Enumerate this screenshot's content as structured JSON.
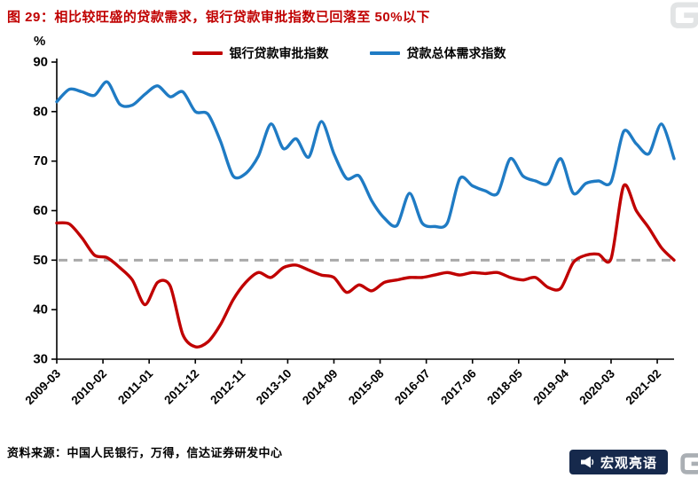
{
  "header": {
    "title": "图 29：相比较旺盛的贷款需求，银行贷款审批指数已回落至 50%以下",
    "title_color": "#C00000"
  },
  "axis": {
    "y_unit_label": "%"
  },
  "legend": {
    "items": [
      {
        "label": "银行贷款审批指数",
        "color": "#C00000"
      },
      {
        "label": "贷款总体需求指数",
        "color": "#1F7BC4"
      }
    ]
  },
  "footer": {
    "source": "资料来源：中国人民银行，万得，信达证券研发中心"
  },
  "watermarks": {
    "brand_badge": "宏观亮语",
    "corner_logo": "格隆汇"
  },
  "chart_data": {
    "type": "line",
    "title": "相比较旺盛的贷款需求，银行贷款审批指数已回落至 50%以下",
    "y_unit": "%",
    "ylim": [
      30,
      90
    ],
    "yticks": [
      90,
      80,
      70,
      60,
      50,
      40,
      30
    ],
    "grid": false,
    "legend_position": "top-center",
    "reference_line": {
      "value": 50,
      "style": "dashed",
      "color": "#A9A9A9"
    },
    "x": [
      "2009Q1",
      "2009Q2",
      "2009Q3",
      "2009Q4",
      "2010Q1",
      "2010Q2",
      "2010Q3",
      "2010Q4",
      "2011Q1",
      "2011Q2",
      "2011Q3",
      "2011Q4",
      "2012Q1",
      "2012Q2",
      "2012Q3",
      "2012Q4",
      "2013Q1",
      "2013Q2",
      "2013Q3",
      "2013Q4",
      "2014Q1",
      "2014Q2",
      "2014Q3",
      "2014Q4",
      "2015Q1",
      "2015Q2",
      "2015Q3",
      "2015Q4",
      "2016Q1",
      "2016Q2",
      "2016Q3",
      "2016Q4",
      "2017Q1",
      "2017Q2",
      "2017Q3",
      "2017Q4",
      "2018Q1",
      "2018Q2",
      "2018Q3",
      "2018Q4",
      "2019Q1",
      "2019Q2",
      "2019Q3",
      "2019Q4",
      "2020Q1",
      "2020Q2",
      "2020Q3",
      "2020Q4",
      "2021Q1",
      "2021Q2"
    ],
    "x_tick_labels": [
      "2009-03",
      "2010-02",
      "2011-01",
      "2011-12",
      "2012-11",
      "2013-10",
      "2014-09",
      "2015-08",
      "2016-07",
      "2017-06",
      "2018-05",
      "2019-04",
      "2020-03",
      "2021-02"
    ],
    "x_tick_months": [
      0,
      11,
      22,
      33,
      44,
      55,
      66,
      77,
      88,
      99,
      110,
      121,
      132,
      143
    ],
    "series": [
      {
        "name": "银行贷款审批指数",
        "color": "#C00000",
        "values": [
          57.5,
          57.3,
          54.5,
          51.0,
          50.5,
          48.5,
          46.0,
          41.0,
          45.5,
          44.8,
          35.0,
          32.5,
          33.5,
          37.0,
          42.0,
          45.5,
          47.5,
          46.5,
          48.5,
          49.0,
          48.0,
          47.0,
          46.5,
          43.5,
          45.0,
          43.8,
          45.5,
          46.0,
          46.5,
          46.5,
          47.0,
          47.5,
          47.0,
          47.5,
          47.3,
          47.5,
          46.5,
          46.0,
          46.5,
          44.5,
          44.3,
          49.5,
          51.0,
          51.2,
          50.3,
          65.0,
          60.0,
          56.5,
          52.5,
          50.0
        ]
      },
      {
        "name": "贷款总体需求指数",
        "color": "#1F7BC4",
        "values": [
          82.0,
          84.5,
          84.0,
          83.3,
          86.0,
          81.5,
          81.3,
          83.5,
          85.2,
          83.0,
          84.0,
          80.0,
          79.5,
          74.0,
          67.0,
          67.5,
          71.0,
          77.5,
          72.5,
          74.5,
          70.8,
          78.0,
          71.5,
          66.5,
          67.0,
          62.0,
          58.5,
          57.0,
          63.5,
          57.5,
          56.8,
          57.5,
          66.5,
          65.0,
          64.0,
          63.5,
          70.5,
          67.0,
          66.0,
          65.5,
          70.5,
          63.5,
          65.5,
          66.0,
          65.8,
          76.0,
          73.5,
          71.5,
          77.5,
          70.5
        ]
      }
    ]
  }
}
